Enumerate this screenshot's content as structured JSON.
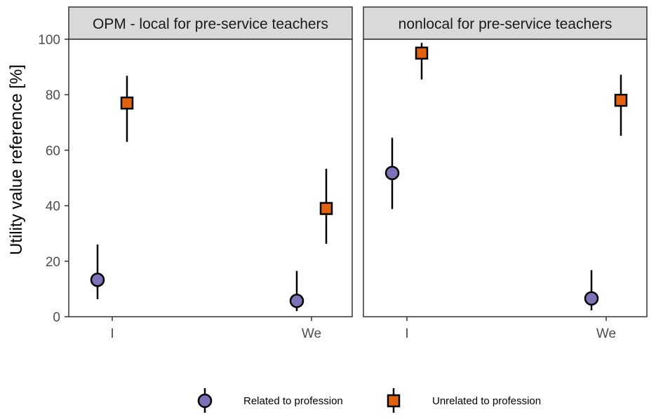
{
  "chart_data": {
    "type": "scatter",
    "ylabel": "Utility value reference [%]",
    "xlabel": "",
    "ylim": [
      0,
      100
    ],
    "yticks": [
      0,
      20,
      40,
      60,
      80,
      100
    ],
    "categories": [
      "I",
      "We"
    ],
    "grid": false,
    "legend_position": "bottom",
    "series_styles": {
      "Related to profession": {
        "color": "#7b72b8",
        "shape": "circle"
      },
      "Unrelated to profession": {
        "color": "#e1620f",
        "shape": "square"
      }
    },
    "panels": [
      {
        "strip": "OPM - local for pre-service teachers",
        "series": [
          {
            "name": "Related to profession",
            "points": [
              {
                "x": "I",
                "y": 13.3,
                "low": 6.3,
                "high": 26.0
              },
              {
                "x": "We",
                "y": 5.7,
                "low": 2.0,
                "high": 16.5
              }
            ]
          },
          {
            "name": "Unrelated to profession",
            "points": [
              {
                "x": "I",
                "y": 77.0,
                "low": 63.0,
                "high": 86.8
              },
              {
                "x": "We",
                "y": 39.0,
                "low": 26.3,
                "high": 53.3
              }
            ]
          }
        ]
      },
      {
        "strip": "nonlocal for pre-service teachers",
        "series": [
          {
            "name": "Related to profession",
            "points": [
              {
                "x": "I",
                "y": 51.8,
                "low": 38.8,
                "high": 64.5
              },
              {
                "x": "We",
                "y": 6.6,
                "low": 2.3,
                "high": 16.8
              }
            ]
          },
          {
            "name": "Unrelated to profession",
            "points": [
              {
                "x": "I",
                "y": 95.0,
                "low": 85.5,
                "high": 98.7
              },
              {
                "x": "We",
                "y": 78.0,
                "low": 65.2,
                "high": 87.2
              }
            ]
          }
        ]
      }
    ]
  },
  "legend": {
    "items": [
      {
        "label": "Related to profession",
        "color": "#7b72b8",
        "shape": "circle"
      },
      {
        "label": "Unrelated to profession",
        "color": "#e1620f",
        "shape": "square"
      }
    ]
  }
}
